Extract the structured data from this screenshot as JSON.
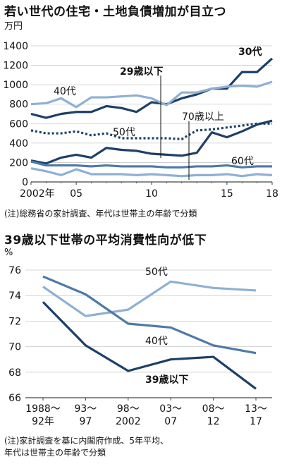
{
  "chart1": {
    "title": "若い世代の住宅・土地負債増加が目立つ",
    "unit": "万円",
    "note": "(注)総務省の家計調査、年代は世帯主の年齢で分類",
    "chart_data": {
      "type": "line",
      "x_ticks": [
        "2002年",
        "05",
        "10",
        "15",
        "18"
      ],
      "y_ticks": [
        "0",
        "200",
        "400",
        "600",
        "800",
        "1000",
        "1200",
        "1400"
      ],
      "ylim": [
        0,
        1400
      ],
      "xlim": [
        2002,
        2018
      ],
      "x": [
        2002,
        2003,
        2004,
        2005,
        2006,
        2007,
        2008,
        2009,
        2010,
        2011,
        2012,
        2013,
        2014,
        2015,
        2016,
        2017,
        2018
      ],
      "series": [
        {
          "name": "30代",
          "color": "#1e3f66",
          "dash": false,
          "values": [
            700,
            660,
            700,
            720,
            720,
            780,
            760,
            720,
            820,
            800,
            860,
            900,
            960,
            960,
            1130,
            1130,
            1270
          ]
        },
        {
          "name": "40代",
          "color": "#8fb0d2",
          "dash": false,
          "values": [
            800,
            810,
            860,
            770,
            870,
            870,
            880,
            890,
            860,
            790,
            920,
            920,
            960,
            980,
            990,
            980,
            1030
          ]
        },
        {
          "name": "50代",
          "color": "#1e3f66",
          "dash": true,
          "values": [
            530,
            500,
            500,
            520,
            480,
            500,
            450,
            450,
            450,
            450,
            440,
            530,
            540,
            560,
            580,
            600,
            600
          ]
        },
        {
          "name": "29歳以下",
          "color": "#1e3f66",
          "dash": false,
          "values": [
            220,
            190,
            250,
            280,
            250,
            350,
            330,
            320,
            290,
            280,
            270,
            300,
            510,
            460,
            520,
            590,
            630
          ]
        },
        {
          "name": "60代",
          "color": "#4f79a8",
          "dash": false,
          "values": [
            210,
            170,
            170,
            170,
            160,
            170,
            160,
            160,
            160,
            150,
            150,
            160,
            160,
            170,
            150,
            160,
            160
          ]
        },
        {
          "name": "70歳以上",
          "color": "#8fb0d2",
          "dash": false,
          "values": [
            140,
            110,
            70,
            130,
            80,
            80,
            80,
            70,
            80,
            70,
            60,
            70,
            70,
            80,
            60,
            80,
            70
          ]
        }
      ]
    },
    "labels": {
      "s30": "30代",
      "s40": "40代",
      "s50": "50代",
      "s29": "29歳以下",
      "s60": "60代",
      "s70": "70歳以上"
    }
  },
  "chart2": {
    "title": "39歳以下世帯の平均消費性向が低下",
    "unit": "%",
    "note_line1": "(注)家計調査を基に内閣府作成、5年平均、",
    "note_line2": "年代は世帯主の年齢で分類",
    "chart_data": {
      "type": "line",
      "categories": [
        [
          "1988～",
          "92年"
        ],
        [
          "93～",
          "97"
        ],
        [
          "98～",
          "2002"
        ],
        [
          "03～",
          "07"
        ],
        [
          "08～",
          "12"
        ],
        [
          "13～",
          "17"
        ]
      ],
      "y_ticks": [
        "66",
        "68",
        "70",
        "72",
        "74",
        "76"
      ],
      "ylim": [
        66,
        76
      ],
      "series": [
        {
          "name": "50代",
          "color": "#8fb0d2",
          "values": [
            74.7,
            72.4,
            72.9,
            75.1,
            74.6,
            74.4
          ]
        },
        {
          "name": "40代",
          "color": "#4f79a8",
          "values": [
            75.5,
            74.1,
            71.8,
            71.5,
            70.1,
            69.5
          ]
        },
        {
          "name": "39歳以下",
          "color": "#1e3f66",
          "values": [
            73.5,
            70.1,
            68.1,
            69.0,
            69.2,
            66.7
          ]
        }
      ]
    },
    "labels": {
      "s50": "50代",
      "s40": "40代",
      "s39": "39歳以下"
    }
  }
}
